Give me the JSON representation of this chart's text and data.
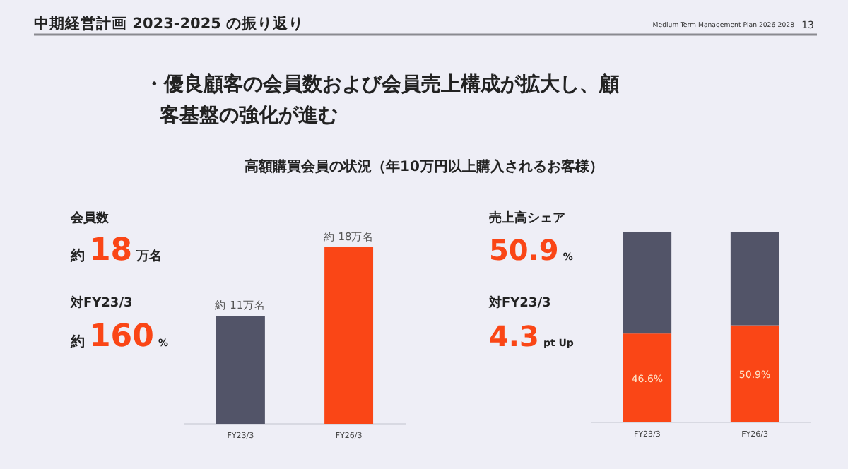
{
  "chart_data": [
    {
      "type": "bar",
      "title": "中期経営計画 2023-2025 の振り返り",
      "subtitle": "・優良顧客の会員数および会員売上構成が拡大し、顧客基盤の強化が進む",
      "annotations": [
        "Medium-Term Management Plan 2026-2028",
        "13",
        "高額購買会員の状況（年10万円以上購入されるお客様）",
        "会員数",
        "約",
        "18",
        "万名",
        "対FY23/3",
        "約",
        "160",
        "%"
      ],
      "categories": [
        "FY23/3",
        "FY26/3"
      ],
      "values": [
        11,
        18
      ],
      "colors": [
        "#525468",
        "#fa4616"
      ],
      "value_labels": [
        "約 11万名",
        "約 18万名"
      ]
    },
    {
      "type": "bar",
      "stacked": true,
      "annotations": [
        "売上高シェア",
        "50.9",
        "%",
        "対FY23/3",
        "4.3",
        "pt Up"
      ],
      "categories": [
        "FY23/3",
        "FY26/3"
      ],
      "series": [
        {
          "color": "#fa4616",
          "values": [
            46.6,
            50.9
          ],
          "value_labels": [
            "46.6%",
            "50.9%"
          ]
        },
        {
          "color": "#525468",
          "values": [
            53.4,
            49.1
          ]
        }
      ]
    }
  ]
}
